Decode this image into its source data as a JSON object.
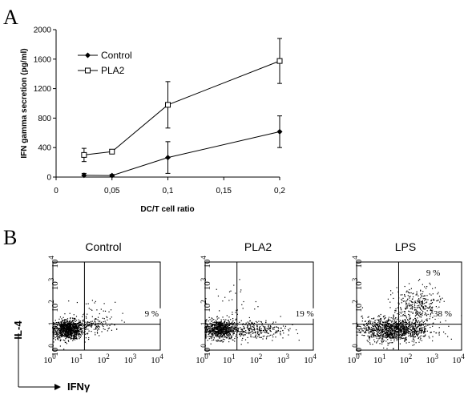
{
  "panels": {
    "a_letter": "A",
    "b_letter": "B"
  },
  "chart_data": [
    {
      "type": "line",
      "x": [
        0.025,
        0.05,
        0.1,
        0.2
      ],
      "series": [
        {
          "name": "Control",
          "marker": "filled-diamond",
          "values": [
            25,
            20,
            265,
            615
          ],
          "error": [
            25,
            15,
            215,
            215
          ]
        },
        {
          "name": "PLA2",
          "marker": "open-square",
          "values": [
            300,
            345,
            980,
            1575
          ],
          "error": [
            90,
            20,
            315,
            305
          ]
        }
      ],
      "xlabel": "DC/T cell ratio",
      "ylabel": "IFN gamma secretion (pg/ml)",
      "xlim": [
        0,
        0.2
      ],
      "ylim": [
        0,
        2000
      ],
      "xticks": [
        0,
        0.05,
        0.1,
        0.15,
        0.2
      ],
      "xtick_labels": [
        "0",
        "0,05",
        "0,1",
        "0,15",
        "0,2"
      ],
      "yticks": [
        0,
        400,
        800,
        1200,
        1600,
        2000
      ],
      "ytick_labels": [
        "0",
        "400",
        "800",
        "1200",
        "1600",
        "2000"
      ],
      "legend": "top-left"
    },
    {
      "type": "scatter",
      "subtype": "flow-cytometry-dot-plots",
      "x_scale": "log",
      "y_scale": "log",
      "xlim": [
        1,
        10000
      ],
      "ylim": [
        1,
        10000
      ],
      "xlabel": "IFNγ",
      "ylabel": "IL-4",
      "tick_exponents": [
        0,
        1,
        2,
        3,
        4
      ],
      "plots": [
        {
          "title": "Control",
          "quadrant_gate": {
            "x": 15,
            "y": 15
          },
          "annotations": [
            {
              "quadrant": "lower-right",
              "text": "9 %"
            }
          ]
        },
        {
          "title": "PLA2",
          "quadrant_gate": {
            "x": 15,
            "y": 15
          },
          "annotations": [
            {
              "quadrant": "lower-right",
              "text": "19 %"
            }
          ]
        },
        {
          "title": "LPS",
          "quadrant_gate": {
            "x": 40,
            "y": 15
          },
          "annotations": [
            {
              "quadrant": "upper-right",
              "text": "9 %"
            },
            {
              "quadrant": "lower-right",
              "text": "38 %"
            }
          ]
        }
      ]
    }
  ]
}
